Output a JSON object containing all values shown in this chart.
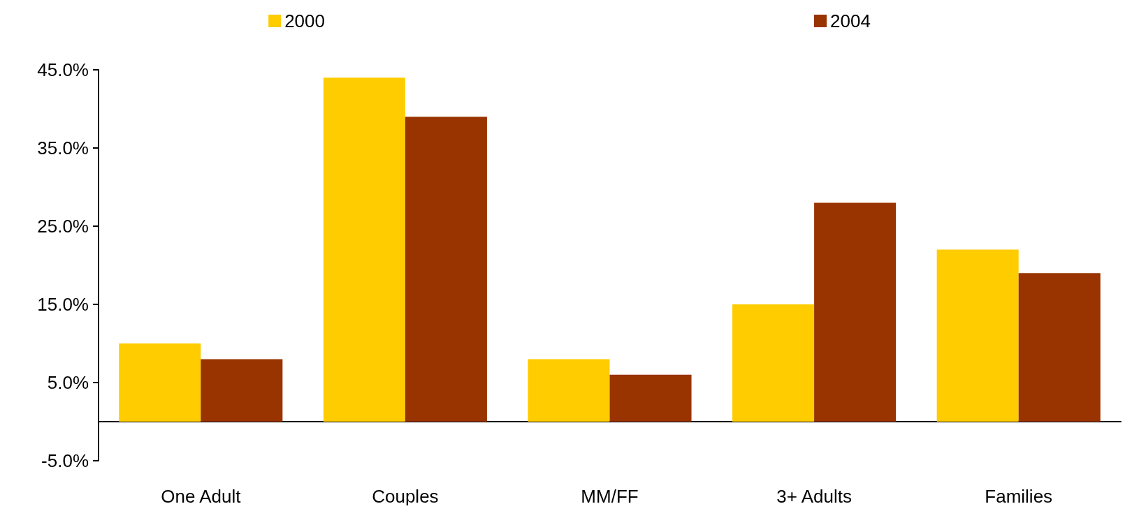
{
  "chart_data": {
    "type": "bar",
    "categories": [
      "One Adult",
      "Couples",
      "MM/FF",
      "3+ Adults",
      "Families"
    ],
    "series": [
      {
        "name": "2000",
        "color": "#ffcc00",
        "values": [
          10,
          44,
          8,
          15,
          22
        ]
      },
      {
        "name": "2004",
        "color": "#993300",
        "values": [
          8,
          39,
          6,
          28,
          19
        ]
      }
    ],
    "ylim": [
      -5,
      45
    ],
    "yticks": [
      {
        "value": -5,
        "label": "-5.0%"
      },
      {
        "value": 5,
        "label": "5.0%"
      },
      {
        "value": 15,
        "label": "15.0%"
      },
      {
        "value": 25,
        "label": "25.0%"
      },
      {
        "value": 35,
        "label": "35.0%"
      },
      {
        "value": 45,
        "label": "45.0%"
      }
    ],
    "grid": false,
    "legend": "top"
  }
}
